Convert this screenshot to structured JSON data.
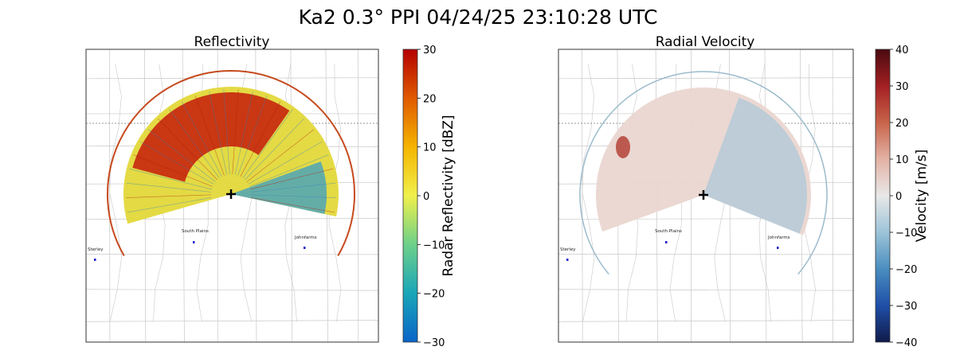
{
  "figure_title": "Ka2 0.3° PPI 04/24/25 23:10:28 UTC",
  "chart_data": [
    {
      "type": "heatmap",
      "panel": "reflectivity",
      "title": "Reflectivity",
      "colorbar_label": "Radar Reflectivity [dBZ]",
      "colorbar_range": [
        -30,
        30
      ],
      "colorbar_ticks": [
        "30",
        "20",
        "10",
        "0",
        "−10",
        "−20",
        "−30"
      ],
      "colorbar_stops": [
        "#0a64c8",
        "#19a6b8",
        "#6dd08a",
        "#f0f04a",
        "#f5b400",
        "#e05a00",
        "#b40000"
      ],
      "sector_fill": "#e3d83a",
      "range_ring_color": "#c64a1e",
      "towns": [
        "South Plains",
        "Johnfarms",
        "Sterley"
      ]
    },
    {
      "type": "heatmap",
      "panel": "velocity",
      "title": "Radial Velocity",
      "colorbar_label": "Velocity [m/s]",
      "colorbar_range": [
        -40,
        40
      ],
      "colorbar_ticks": [
        "40",
        "30",
        "20",
        "10",
        "0",
        "−10",
        "−20",
        "−30",
        "−40"
      ],
      "colorbar_stops": [
        "#101a4a",
        "#1f4fa8",
        "#4a8ec0",
        "#9dc4d8",
        "#e8e8e8",
        "#e3b2a4",
        "#c8644a",
        "#a31f22",
        "#4a0a10"
      ],
      "sector_fill": "#ead6d0",
      "range_ring_color": "#9bbbcc",
      "towns": [
        "South Plains",
        "Johnfarms",
        "Sterley"
      ]
    }
  ],
  "colors": {
    "axes_frame": "#333333",
    "roads": "#c8c8c8",
    "town_marker": "#2222cc",
    "radar_marker": "#000000"
  }
}
